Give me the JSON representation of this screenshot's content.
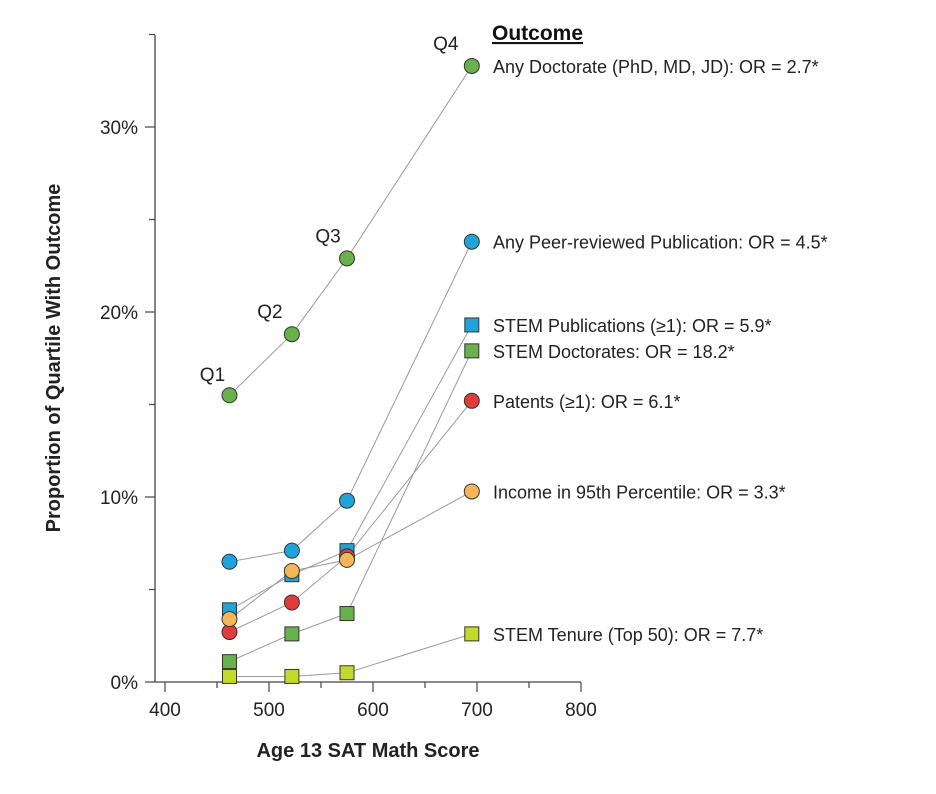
{
  "chart_data": {
    "type": "line",
    "xlabel": "Age 13 SAT Math Score",
    "ylabel": "Proportion of Quartile With Outcome",
    "xlim": [
      400,
      800
    ],
    "ylim": [
      0,
      35
    ],
    "xticks": [
      400,
      500,
      600,
      700,
      800
    ],
    "xtick_labels": [
      "400",
      "500",
      "600",
      "700",
      "800"
    ],
    "yticks": [
      0,
      10,
      20,
      30
    ],
    "ytick_labels": [
      "0%",
      "10%",
      "20%",
      "30%"
    ],
    "legend_title": "Outcome",
    "x": [
      462,
      522,
      575,
      695
    ],
    "quartile_labels": [
      {
        "text": "Q1",
        "x": 462,
        "y": 15.4
      },
      {
        "text": "Q2",
        "x": 522,
        "y": 18.8
      },
      {
        "text": "Q3",
        "x": 575,
        "y": 22.9
      },
      {
        "text": "Q4",
        "x": 695,
        "y": 33.3
      }
    ],
    "series": [
      {
        "name": "Any Doctorate",
        "label": "Any Doctorate  (PhD, MD, JD): OR = 2.7*",
        "marker": "circle",
        "color": "#6ab04c",
        "values": [
          15.5,
          18.8,
          22.9,
          33.3
        ]
      },
      {
        "name": "Any Peer-reviewed Publication",
        "label": "Any Peer-reviewed Publication: OR = 4.5*",
        "marker": "circle",
        "color": "#1fa3d8",
        "values": [
          6.5,
          7.1,
          9.8,
          23.8
        ]
      },
      {
        "name": "STEM Publications",
        "label": "STEM Publications (≥1): OR = 5.9*",
        "marker": "square",
        "color": "#1fa3d8",
        "values": [
          3.9,
          5.8,
          7.1,
          19.3
        ]
      },
      {
        "name": "STEM Doctorates",
        "label": "STEM Doctorates: OR = 18.2*",
        "marker": "square",
        "color": "#6ab04c",
        "values": [
          1.1,
          2.6,
          3.7,
          17.9
        ]
      },
      {
        "name": "Patents",
        "label": "Patents (≥1): OR = 6.1*",
        "marker": "circle",
        "color": "#e03c3c",
        "values": [
          2.7,
          4.3,
          6.8,
          15.2
        ]
      },
      {
        "name": "Income in 95th Percentile",
        "label": "Income in 95th Percentile: OR = 3.3*",
        "marker": "circle",
        "color": "#f5b65a",
        "values": [
          3.4,
          6.0,
          6.6,
          10.3
        ]
      },
      {
        "name": "STEM Tenure (Top 50)",
        "label": "STEM Tenure (Top 50): OR = 7.7*",
        "marker": "square",
        "color": "#c3d92c",
        "values": [
          0.3,
          0.3,
          0.5,
          2.6
        ]
      }
    ]
  }
}
